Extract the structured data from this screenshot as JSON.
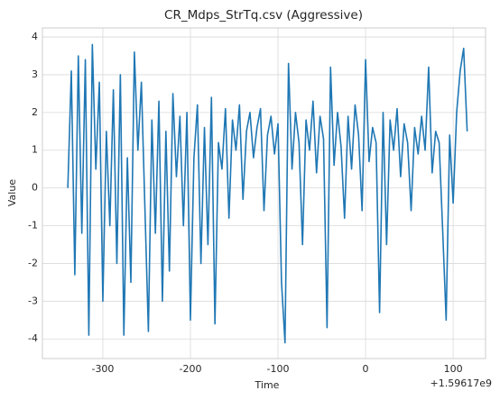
{
  "chart_data": {
    "type": "line",
    "title": "CR_Mdps_StrTq.csv (Aggressive)",
    "x_label": "Time",
    "y_label": "Value",
    "x_offset_label": "+1.59617e9",
    "color": "#1f77b4",
    "grid": true,
    "xlim": [
      -369,
      137
    ],
    "ylim": [
      -4.52,
      4.24
    ],
    "xticks": [
      -300,
      -200,
      -100,
      0,
      100
    ],
    "yticks": [
      -4,
      -3,
      -2,
      -1,
      0,
      1,
      2,
      3,
      4
    ],
    "x": [
      -340,
      -336,
      -332,
      -328,
      -324,
      -320,
      -316,
      -312,
      -308,
      -304,
      -300,
      -296,
      -292,
      -288,
      -284,
      -280,
      -276,
      -272,
      -268,
      -264,
      -260,
      -256,
      -252,
      -248,
      -244,
      -240,
      -236,
      -232,
      -228,
      -224,
      -220,
      -216,
      -212,
      -208,
      -204,
      -200,
      -196,
      -192,
      -188,
      -184,
      -180,
      -176,
      -172,
      -168,
      -164,
      -160,
      -156,
      -152,
      -148,
      -144,
      -140,
      -136,
      -132,
      -128,
      -124,
      -120,
      -116,
      -112,
      -108,
      -104,
      -100,
      -96,
      -92,
      -88,
      -84,
      -80,
      -76,
      -72,
      -68,
      -64,
      -60,
      -56,
      -52,
      -48,
      -44,
      -40,
      -36,
      -32,
      -28,
      -24,
      -20,
      -16,
      -12,
      -8,
      -4,
      0,
      4,
      8,
      12,
      16,
      20,
      24,
      28,
      32,
      36,
      40,
      44,
      48,
      52,
      56,
      60,
      64,
      68,
      72,
      76,
      80,
      84,
      88,
      92,
      96,
      100,
      104,
      108,
      112,
      116
    ],
    "values": [
      0,
      3.1,
      -2.3,
      3.5,
      -1.2,
      3.4,
      -3.9,
      3.8,
      0.5,
      2.8,
      -3.0,
      1.5,
      -1.0,
      2.6,
      -2.0,
      3.0,
      -3.9,
      0.8,
      -2.5,
      3.6,
      1.0,
      2.8,
      -0.5,
      -3.8,
      1.8,
      -1.2,
      2.3,
      -3.0,
      1.5,
      -2.2,
      2.5,
      0.3,
      1.9,
      -1.0,
      2.0,
      -3.5,
      0.8,
      2.2,
      -2.0,
      1.6,
      -1.5,
      2.4,
      -3.6,
      1.2,
      0.5,
      2.1,
      -0.8,
      1.8,
      1.0,
      2.2,
      -0.3,
      1.5,
      2.0,
      0.8,
      1.6,
      2.1,
      -0.6,
      1.4,
      1.9,
      0.9,
      1.7,
      -2.5,
      -4.1,
      3.3,
      0.5,
      2.0,
      1.2,
      -1.5,
      1.8,
      1.0,
      2.3,
      0.4,
      1.9,
      1.3,
      -3.7,
      3.2,
      0.6,
      2.0,
      1.1,
      -0.8,
      1.9,
      0.5,
      2.2,
      1.4,
      -0.6,
      3.4,
      0.7,
      1.6,
      1.2,
      -3.3,
      2.0,
      -1.5,
      1.8,
      1.0,
      2.1,
      0.3,
      1.7,
      1.2,
      -0.6,
      1.6,
      0.9,
      1.9,
      1.0,
      3.2,
      0.4,
      1.5,
      1.2,
      -1.1,
      -3.5,
      1.4,
      -0.4,
      2.0,
      3.1,
      3.7,
      1.5
    ]
  }
}
